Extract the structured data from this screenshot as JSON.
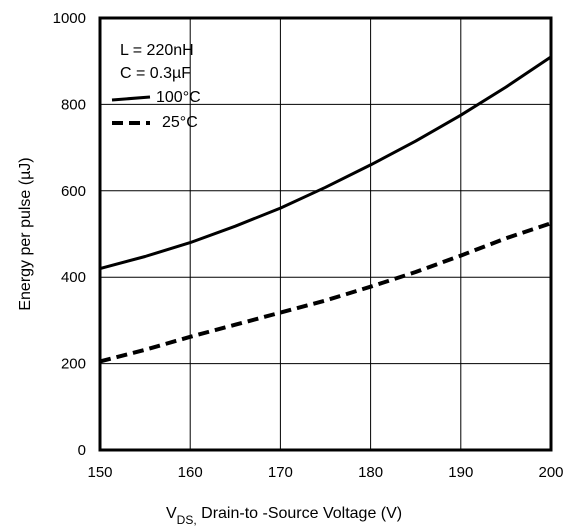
{
  "chart_data": {
    "type": "line",
    "title": "",
    "xlabel": {
      "prefix": "V",
      "subscript": "DS,",
      "rest": " Drain-to -Source Voltage  (V)"
    },
    "ylabel": "Energy per pulse (µJ)",
    "xlim": [
      150,
      200
    ],
    "ylim": [
      0,
      1000
    ],
    "xticks": [
      150,
      160,
      170,
      180,
      190,
      200
    ],
    "yticks": [
      0,
      200,
      400,
      600,
      800,
      1000
    ],
    "grid": true,
    "legend_placement": "top-left",
    "annotations": [
      "L = 220nH",
      "C = 0.3µF"
    ],
    "series": [
      {
        "name": "100°C",
        "style": "solid",
        "x": [
          150,
          155,
          160,
          165,
          170,
          175,
          180,
          185,
          190,
          195,
          200
        ],
        "y": [
          420,
          448,
          480,
          518,
          560,
          608,
          660,
          715,
          775,
          840,
          910
        ]
      },
      {
        "name": "25°C",
        "style": "dashed",
        "x": [
          150,
          155,
          160,
          165,
          170,
          175,
          180,
          185,
          190,
          195,
          200
        ],
        "y": [
          205,
          232,
          262,
          290,
          318,
          346,
          378,
          412,
          450,
          490,
          525
        ]
      }
    ]
  },
  "colors": {
    "line": "#000000",
    "grid": "#000000",
    "background": "#ffffff"
  }
}
